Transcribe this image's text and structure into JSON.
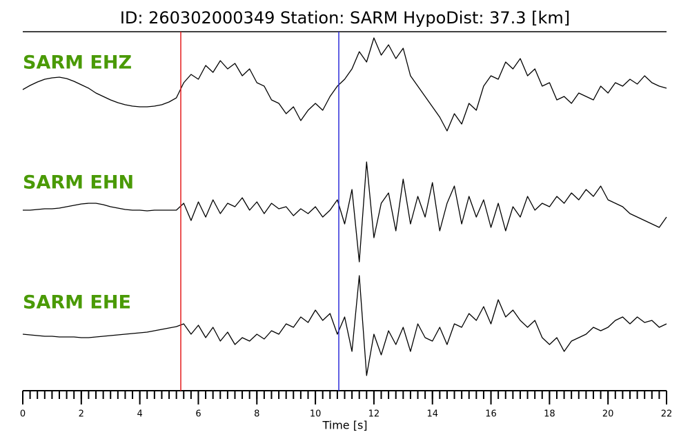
{
  "chart_data": {
    "type": "seismogram",
    "title": "ID: 260302000349   Station: SARM   HypoDist:    37.3 [km]",
    "xlabel": "Time [s]",
    "xlim": [
      0,
      22
    ],
    "xticks": [
      0,
      2,
      4,
      6,
      8,
      10,
      12,
      14,
      16,
      18,
      20,
      22
    ],
    "label_color": "#4a9a06",
    "x": [
      0,
      0.25,
      0.5,
      0.75,
      1,
      1.25,
      1.5,
      1.75,
      2,
      2.25,
      2.5,
      2.75,
      3,
      3.25,
      3.5,
      3.75,
      4,
      4.25,
      4.5,
      4.75,
      5,
      5.25,
      5.5,
      5.75,
      6,
      6.25,
      6.5,
      6.75,
      7,
      7.25,
      7.5,
      7.75,
      8,
      8.25,
      8.5,
      8.75,
      9,
      9.25,
      9.5,
      9.75,
      10,
      10.25,
      10.5,
      10.75,
      11,
      11.25,
      11.5,
      11.75,
      12,
      12.25,
      12.5,
      12.75,
      13,
      13.25,
      13.5,
      13.75,
      14,
      14.25,
      14.5,
      14.75,
      15,
      15.25,
      15.5,
      15.75,
      16,
      16.25,
      16.5,
      16.75,
      17,
      17.25,
      17.5,
      17.75,
      18,
      18.25,
      18.5,
      18.75,
      19,
      19.25,
      19.5,
      19.75,
      20,
      20.25,
      20.5,
      20.75,
      21,
      21.25,
      21.5,
      21.75,
      22
    ],
    "series": [
      {
        "name": "SARM EHZ",
        "color": "#000000",
        "values": [
          0,
          0.06,
          0.11,
          0.15,
          0.17,
          0.18,
          0.16,
          0.12,
          0.07,
          0.02,
          -0.05,
          -0.1,
          -0.15,
          -0.19,
          -0.22,
          -0.24,
          -0.25,
          -0.25,
          -0.24,
          -0.22,
          -0.18,
          -0.12,
          0.1,
          0.22,
          0.15,
          0.35,
          0.25,
          0.42,
          0.3,
          0.38,
          0.2,
          0.3,
          0.1,
          0.05,
          -0.15,
          -0.2,
          -0.35,
          -0.25,
          -0.45,
          -0.3,
          -0.2,
          -0.3,
          -0.1,
          0.05,
          0.15,
          0.3,
          0.55,
          0.4,
          0.75,
          0.5,
          0.65,
          0.45,
          0.6,
          0.2,
          0.05,
          -0.1,
          -0.25,
          -0.4,
          -0.6,
          -0.35,
          -0.5,
          -0.2,
          -0.3,
          0.05,
          0.2,
          0.15,
          0.4,
          0.3,
          0.45,
          0.2,
          0.3,
          0.05,
          0.1,
          -0.15,
          -0.1,
          -0.2,
          -0.05,
          -0.1,
          -0.15,
          0.05,
          -0.05,
          0.1,
          0.05,
          0.15,
          0.08,
          0.2,
          0.1,
          0.05,
          0.02
        ]
      },
      {
        "name": "SARM EHN",
        "color": "#000000",
        "values": [
          0,
          0,
          0.01,
          0.02,
          0.02,
          0.03,
          0.05,
          0.07,
          0.09,
          0.1,
          0.1,
          0.08,
          0.05,
          0.03,
          0.01,
          0,
          0,
          -0.01,
          0,
          0,
          0,
          0,
          0.1,
          -0.15,
          0.12,
          -0.1,
          0.15,
          -0.05,
          0.1,
          0.05,
          0.18,
          0,
          0.12,
          -0.05,
          0.1,
          0.02,
          0.05,
          -0.08,
          0.02,
          -0.05,
          0.05,
          -0.1,
          0,
          0.15,
          -0.2,
          0.3,
          -0.75,
          0.7,
          -0.4,
          0.1,
          0.25,
          -0.3,
          0.45,
          -0.2,
          0.2,
          -0.1,
          0.4,
          -0.3,
          0.1,
          0.35,
          -0.2,
          0.2,
          -0.1,
          0.15,
          -0.25,
          0.1,
          -0.3,
          0.05,
          -0.1,
          0.2,
          0,
          0.1,
          0.05,
          0.2,
          0.1,
          0.25,
          0.15,
          0.3,
          0.2,
          0.35,
          0.15,
          0.1,
          0.05,
          -0.05,
          -0.1,
          -0.15,
          -0.2,
          -0.25,
          -0.1
        ]
      },
      {
        "name": "SARM EHE",
        "color": "#000000",
        "values": [
          -0.05,
          -0.06,
          -0.07,
          -0.08,
          -0.08,
          -0.09,
          -0.09,
          -0.09,
          -0.1,
          -0.1,
          -0.09,
          -0.08,
          -0.07,
          -0.06,
          -0.05,
          -0.04,
          -0.03,
          -0.02,
          0,
          0.02,
          0.04,
          0.06,
          0.1,
          -0.05,
          0.08,
          -0.1,
          0.05,
          -0.15,
          -0.02,
          -0.2,
          -0.1,
          -0.15,
          -0.05,
          -0.12,
          0,
          -0.05,
          0.1,
          0.05,
          0.2,
          0.12,
          0.3,
          0.15,
          0.25,
          -0.05,
          0.2,
          -0.3,
          0.8,
          -0.65,
          -0.05,
          -0.35,
          0,
          -0.2,
          0.05,
          -0.3,
          0.1,
          -0.1,
          -0.15,
          0.05,
          -0.2,
          0.1,
          0.05,
          0.25,
          0.15,
          0.35,
          0.1,
          0.45,
          0.2,
          0.3,
          0.15,
          0.05,
          0.15,
          -0.1,
          -0.2,
          -0.1,
          -0.3,
          -0.15,
          -0.1,
          -0.05,
          0.05,
          0,
          0.05,
          0.15,
          0.2,
          0.1,
          0.2,
          0.12,
          0.15,
          0.05,
          0.1
        ]
      }
    ],
    "picks": [
      {
        "x": 5.4,
        "color": "#e41a1c"
      },
      {
        "x": 10.8,
        "color": "#2b2bd8"
      }
    ]
  }
}
